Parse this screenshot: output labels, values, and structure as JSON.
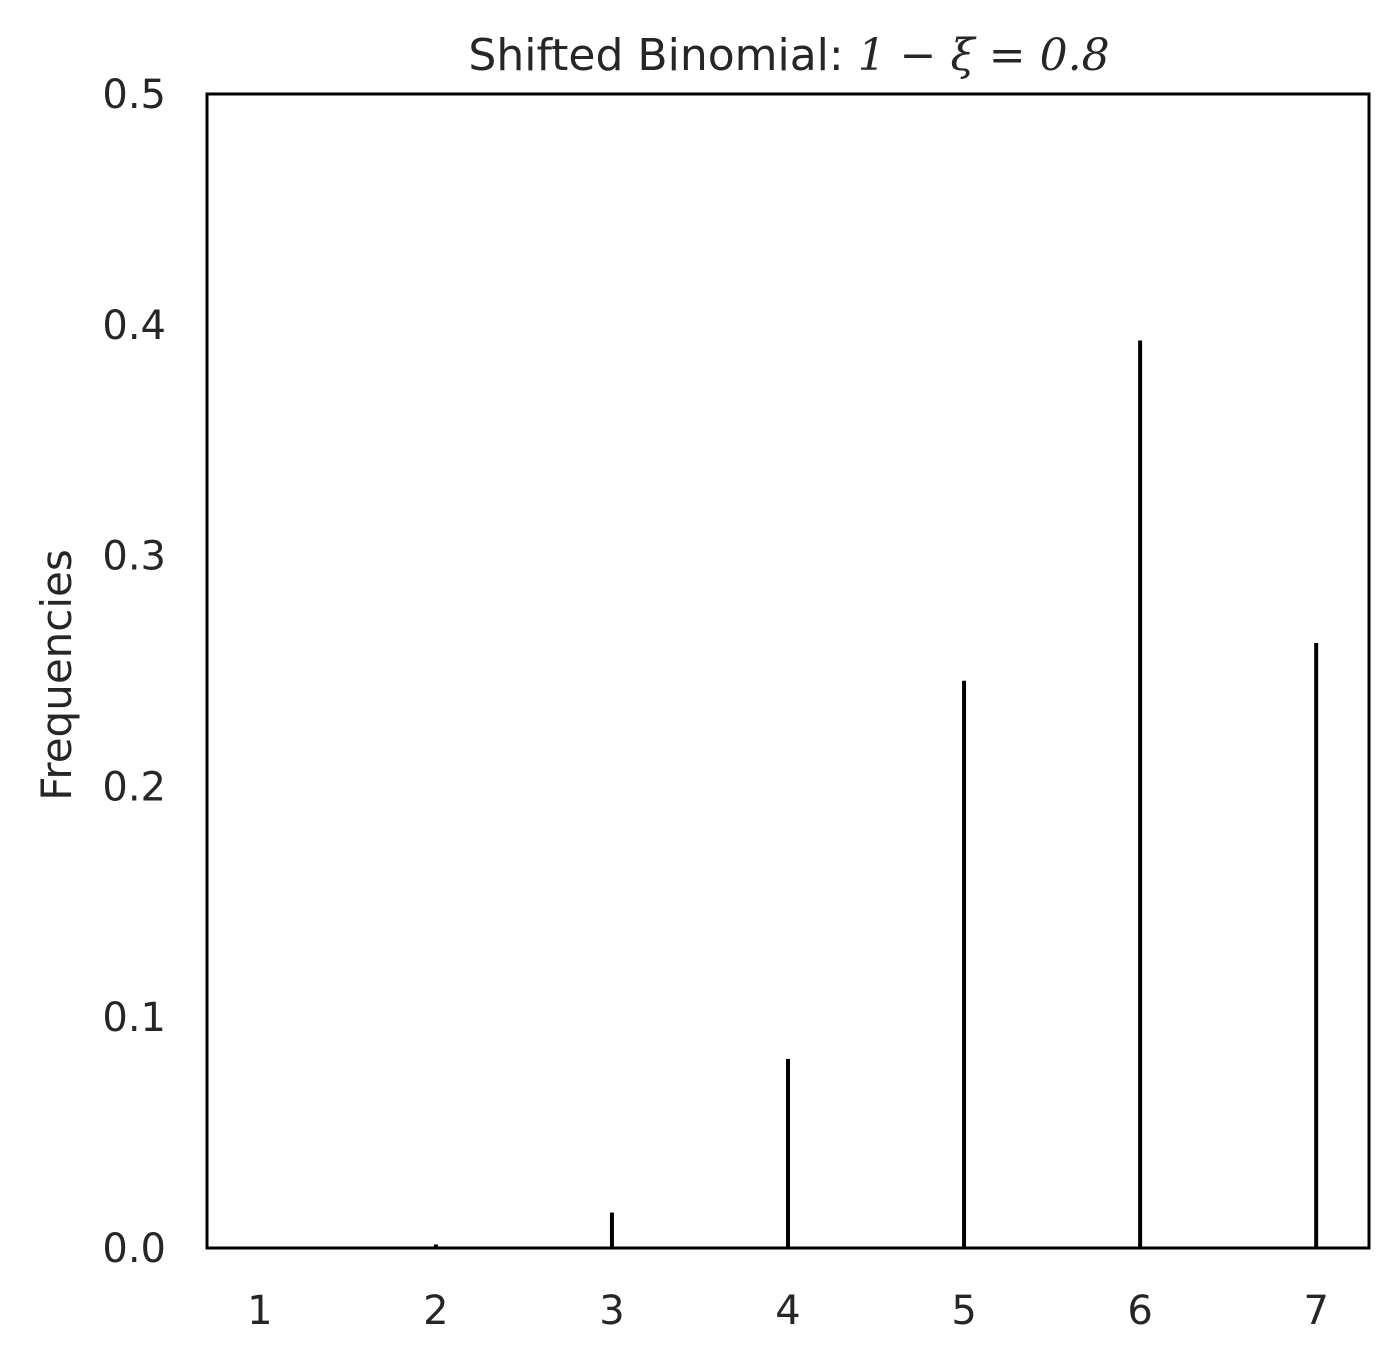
{
  "chart_data": {
    "type": "bar",
    "title": {
      "prefix": "Shifted Binomial: ",
      "math": "1 − ξ = 0.8"
    },
    "xlabel": "",
    "ylabel": "Frequencies",
    "x": [
      1,
      2,
      3,
      4,
      5,
      6,
      7
    ],
    "values": [
      6.4e-05,
      0.001536,
      0.01536,
      0.08192,
      0.24576,
      0.393216,
      0.262144
    ],
    "xlim": [
      0.7,
      7.3
    ],
    "ylim": [
      0.0,
      0.5
    ],
    "yticks": [
      "0.0",
      "0.1",
      "0.2",
      "0.3",
      "0.4",
      "0.5"
    ],
    "xticks": [
      "1",
      "2",
      "3",
      "4",
      "5",
      "6",
      "7"
    ],
    "grid": false,
    "bar_color": "#000000"
  }
}
